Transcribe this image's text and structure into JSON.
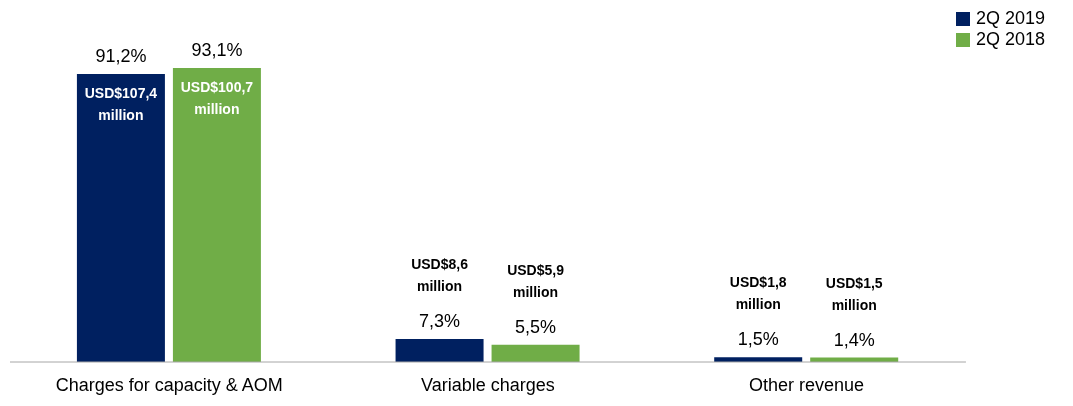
{
  "chart_data": {
    "type": "bar",
    "categories": [
      "Charges for capacity & AOM",
      "Variable charges",
      "Other revenue"
    ],
    "series": [
      {
        "name": "2Q 2019",
        "color": "#002060",
        "values": [
          91.2,
          7.3,
          1.5
        ],
        "value_labels": [
          "91,2%",
          "7,3%",
          "1,5%"
        ]
      },
      {
        "name": "2Q 2018",
        "color": "#70ad47",
        "values": [
          93.1,
          5.5,
          1.4
        ],
        "value_labels": [
          "93,1%",
          "5,5%",
          "1,4%"
        ]
      }
    ],
    "annotations": [
      "USD$107,4 million",
      "USD$100,7 million",
      "USD$8,6 million",
      "USD$5,9 million",
      "USD$1,8 million",
      "USD$1,5 million"
    ],
    "legend": "top right",
    "grid": false
  }
}
